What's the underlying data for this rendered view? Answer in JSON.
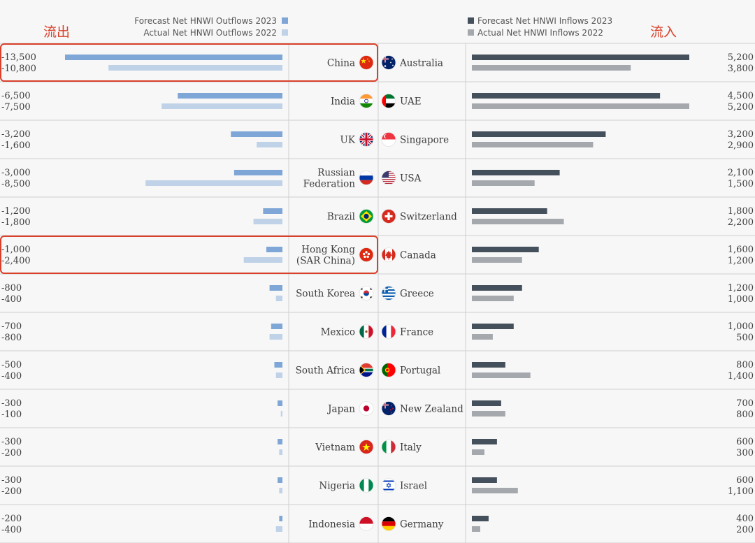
{
  "labels": {
    "outflow_cn": "流出",
    "inflow_cn": "流入"
  },
  "legend_left": [
    {
      "label": "Forecast Net HNWI Outflows 2023",
      "color": "#7ea6d6"
    },
    {
      "label": "Actual Net HNWI Outflows 2022",
      "color": "#bfd2e7"
    }
  ],
  "legend_right": [
    {
      "label": "Forecast Net HNWI Inflows 2023",
      "color": "#45505d"
    },
    {
      "label": "Actual Net HNWI Inflows 2022",
      "color": "#a5a9ae"
    }
  ],
  "highlight_color": "#d9412b",
  "chart_data": [
    {
      "type": "bar",
      "orientation": "horizontal",
      "side": "outflows",
      "categories": [
        "China",
        "India",
        "UK",
        "Russian Federation",
        "Brazil",
        "Hong Kong (SAR China)",
        "South Korea",
        "Mexico",
        "South Africa",
        "Japan",
        "Vietnam",
        "Nigeria",
        "Indonesia"
      ],
      "category_lines": [
        [
          "China"
        ],
        [
          "India"
        ],
        [
          "UK"
        ],
        [
          "Russian",
          "Federation"
        ],
        [
          "Brazil"
        ],
        [
          "Hong Kong",
          "(SAR China)"
        ],
        [
          "South Korea"
        ],
        [
          "Mexico"
        ],
        [
          "South Africa"
        ],
        [
          "Japan"
        ],
        [
          "Vietnam"
        ],
        [
          "Nigeria"
        ],
        [
          "Indonesia"
        ]
      ],
      "flags": [
        "flag-china-icon",
        "flag-india-icon",
        "flag-uk-icon",
        "flag-russia-icon",
        "flag-brazil-icon",
        "flag-hong-kong-icon",
        "flag-south-korea-icon",
        "flag-mexico-icon",
        "flag-south-africa-icon",
        "flag-japan-icon",
        "flag-vietnam-icon",
        "flag-nigeria-icon",
        "flag-indonesia-icon"
      ],
      "series": [
        {
          "name": "Forecast Net HNWI Outflows 2023",
          "values": [
            -13500,
            -6500,
            -3200,
            -3000,
            -1200,
            -1000,
            -800,
            -700,
            -500,
            -300,
            -300,
            -300,
            -200
          ],
          "labels": [
            "-13,500",
            "-6,500",
            "-3,200",
            "-3,000",
            "-1,200",
            "-1,000",
            "-800",
            "-700",
            "-500",
            "-300",
            "-300",
            "-300",
            "-200"
          ]
        },
        {
          "name": "Actual Net HNWI Outflows 2022",
          "values": [
            -10800,
            -7500,
            -1600,
            -8500,
            -1800,
            -2400,
            -400,
            -800,
            -400,
            -100,
            -200,
            -200,
            -400
          ],
          "labels": [
            "-10,800",
            "-7,500",
            "-1,600",
            "-8,500",
            "-1,800",
            "-2,400",
            "-400",
            "-800",
            "-400",
            "-100",
            "-200",
            "-200",
            "-400"
          ]
        }
      ],
      "highlighted": [
        "China",
        "Hong Kong (SAR China)"
      ],
      "xlim": [
        -13500,
        0
      ]
    },
    {
      "type": "bar",
      "orientation": "horizontal",
      "side": "inflows",
      "categories": [
        "Australia",
        "UAE",
        "Singapore",
        "USA",
        "Switzerland",
        "Canada",
        "Greece",
        "France",
        "Portugal",
        "New Zealand",
        "Italy",
        "Israel",
        "Germany"
      ],
      "flags": [
        "flag-australia-icon",
        "flag-uae-icon",
        "flag-singapore-icon",
        "flag-usa-icon",
        "flag-switzerland-icon",
        "flag-canada-icon",
        "flag-greece-icon",
        "flag-france-icon",
        "flag-portugal-icon",
        "flag-new-zealand-icon",
        "flag-italy-icon",
        "flag-israel-icon",
        "flag-germany-icon"
      ],
      "series": [
        {
          "name": "Forecast Net HNWI Inflows 2023",
          "values": [
            5200,
            4500,
            3200,
            2100,
            1800,
            1600,
            1200,
            1000,
            800,
            700,
            600,
            600,
            400
          ],
          "labels": [
            "5,200",
            "4,500",
            "3,200",
            "2,100",
            "1,800",
            "1,600",
            "1,200",
            "1,000",
            "800",
            "700",
            "600",
            "600",
            "400"
          ]
        },
        {
          "name": "Actual Net HNWI Inflows 2022",
          "values": [
            3800,
            5200,
            2900,
            1500,
            2200,
            1200,
            1000,
            500,
            1400,
            800,
            300,
            1100,
            200
          ],
          "labels": [
            "3,800",
            "5,200",
            "2,900",
            "1,500",
            "2,200",
            "1,200",
            "1,000",
            "500",
            "1,400",
            "800",
            "300",
            "1,100",
            "200"
          ]
        }
      ],
      "xlim": [
        0,
        5200
      ]
    }
  ]
}
